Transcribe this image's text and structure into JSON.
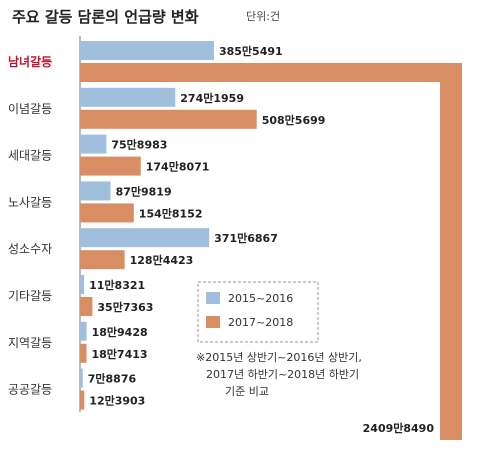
{
  "chart_data": {
    "type": "bar",
    "orientation": "horizontal",
    "title": "주요 갈등 담론의 언급량 변화",
    "unit": "단위:건",
    "categories": [
      "남녀갈등",
      "이념갈등",
      "세대갈등",
      "노사갈등",
      "성소수자",
      "기타갈등",
      "지역갈등",
      "공공갈등"
    ],
    "highlight_category": "남녀갈등",
    "series": [
      {
        "name": "2015~2016",
        "color": "#9fbfdc",
        "values": [
          3855491,
          2741959,
          758983,
          879819,
          3716867,
          118321,
          189428,
          78876
        ],
        "labels": [
          "385만5491",
          "274만1959",
          "75만8983",
          "87만9819",
          "371만6867",
          "11만8321",
          "18만9428",
          "7만8876"
        ]
      },
      {
        "name": "2017~2018",
        "color": "#d98d62",
        "values": [
          24098490,
          5085699,
          1748071,
          1548152,
          1284423,
          357363,
          187413,
          123903
        ],
        "labels": [
          "2409만8490",
          "508만5699",
          "174만8071",
          "154만8152",
          "128만4423",
          "35만7363",
          "18만7413",
          "12만3903"
        ]
      }
    ],
    "note": [
      "※2015년 상반기~2016년 상반기,",
      "2017년 하반기~2018년 하반기",
      "기준 비교"
    ]
  }
}
